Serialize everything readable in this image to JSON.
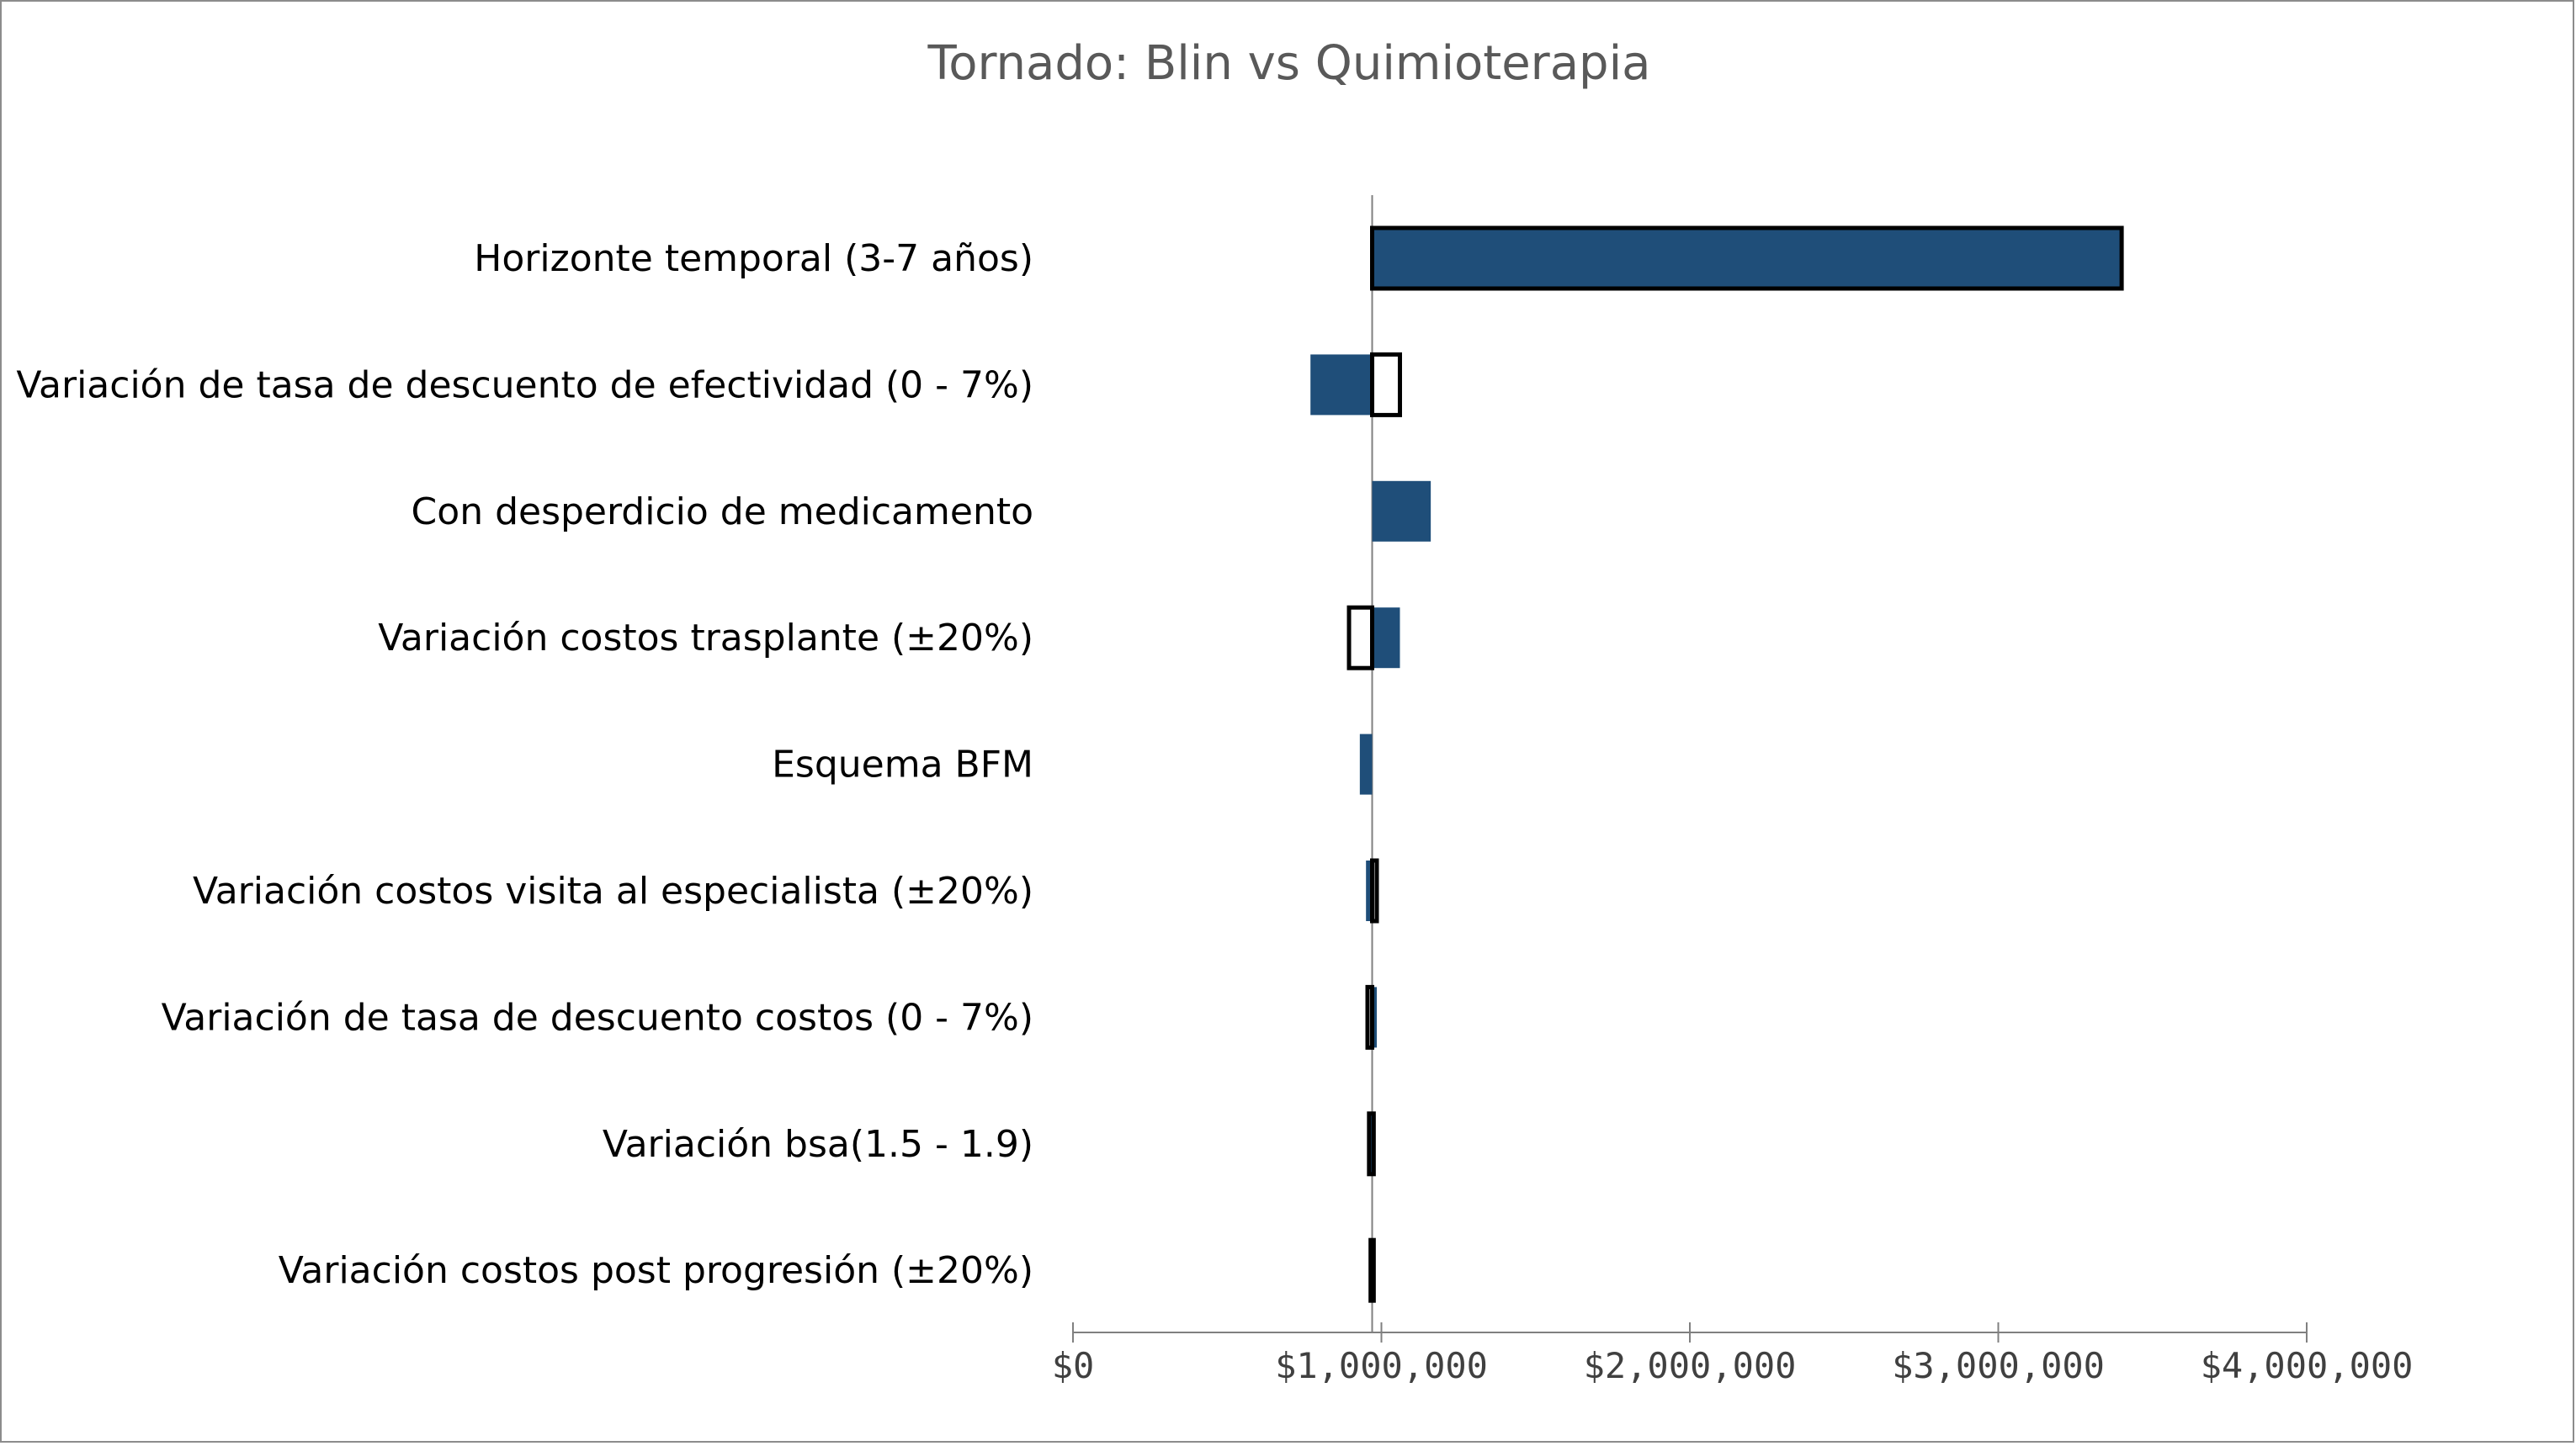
{
  "chart_data": {
    "type": "bar",
    "subtype": "tornado",
    "title": "Tornado: Blin vs Quimioterapia",
    "xlabel": "",
    "ylabel": "",
    "baseline": 970000,
    "xlim": [
      0,
      4000000
    ],
    "xticks": [
      0,
      1000000,
      2000000,
      3000000,
      4000000
    ],
    "xtick_labels": [
      "$0",
      "$1,000,000",
      "$2,000,000",
      "$3,000,000",
      "$4,000,000"
    ],
    "grid": false,
    "legend": "none",
    "colors": {
      "fill": "#1f4e79",
      "outline": "#000000",
      "axis": "#808080"
    },
    "categories": [
      "Horizonte temporal (3-7 años)",
      "Variación de tasa de descuento de efectividad (0 - 7%)",
      "Con desperdicio de medicamento",
      "Variación costos trasplante (±20%)",
      "Esquema BFM",
      "Variación costos visita al especialista (±20%)",
      "Variación de tasa de descuento costos (0 - 7%)",
      "Variación bsa(1.5 - 1.9)",
      "Variación costos post progresión (±20%)"
    ],
    "series": [
      {
        "style": "filled",
        "values": [
          [
            970000,
            3400000
          ],
          [
            770000,
            970000
          ],
          [
            970000,
            1160000
          ],
          [
            970000,
            1060000
          ],
          [
            930000,
            970000
          ],
          [
            950000,
            970000
          ],
          [
            970000,
            985000
          ],
          [
            960000,
            970000
          ],
          [
            965000,
            970000
          ]
        ]
      },
      {
        "style": "outlined",
        "values": [
          [
            970000,
            3400000
          ],
          [
            970000,
            1060000
          ],
          null,
          [
            895000,
            970000
          ],
          null,
          [
            970000,
            985000
          ],
          [
            955000,
            970000
          ],
          [
            960000,
            975000
          ],
          [
            965000,
            975000
          ]
        ]
      }
    ]
  }
}
